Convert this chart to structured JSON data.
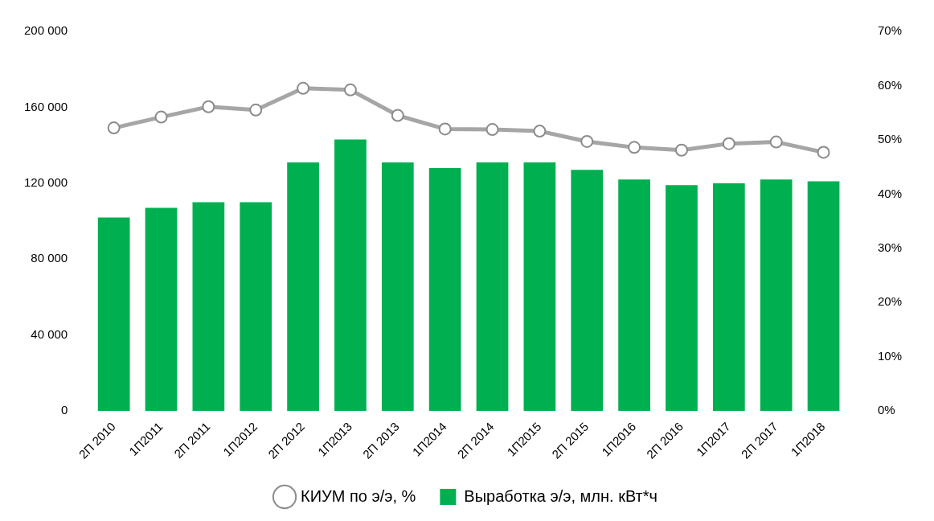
{
  "chart_data": {
    "type": "bar",
    "categories": [
      "2П 2010",
      "1П2011",
      "2П 2011",
      "1П2012",
      "2П 2012",
      "1П2013",
      "2П 2013",
      "1П2014",
      "2П 2014",
      "1П2015",
      "2П 2015",
      "1П2016",
      "2П 2016",
      "1П2017",
      "2П 2017",
      "1П2018"
    ],
    "series": [
      {
        "name": "Выработка э/э, млн. кВт*ч",
        "color": "#00b050",
        "values": [
          102000,
          107000,
          110000,
          110000,
          131000,
          143000,
          131000,
          128000,
          131000,
          131000,
          127000,
          122000,
          119000,
          120000,
          122000,
          121000
        ]
      },
      {
        "name": "КИУМ по э/э, %",
        "type": "line",
        "axis": "y2",
        "color": "#a6a6a6",
        "marker": "circle",
        "values": [
          52.2,
          54.2,
          56.1,
          55.5,
          59.5,
          59.2,
          54.5,
          52.0,
          51.9,
          51.6,
          49.7,
          48.6,
          48.1,
          49.3,
          49.6,
          47.7
        ]
      }
    ],
    "ylim": [
      0,
      200000
    ],
    "yticks": [
      {
        "value": 0,
        "label": "0"
      },
      {
        "value": 40000,
        "label": "40 000"
      },
      {
        "value": 80000,
        "label": "80 000"
      },
      {
        "value": 120000,
        "label": "120 000"
      },
      {
        "value": 160000,
        "label": "160 000"
      },
      {
        "value": 200000,
        "label": "200 000"
      }
    ],
    "y2lim": [
      0,
      70
    ],
    "y2ticks": [
      {
        "value": 0,
        "label": "0%"
      },
      {
        "value": 10,
        "label": "10%"
      },
      {
        "value": 20,
        "label": "20%"
      },
      {
        "value": 30,
        "label": "30%"
      },
      {
        "value": 40,
        "label": "40%"
      },
      {
        "value": 50,
        "label": "50%"
      },
      {
        "value": 60,
        "label": "60%"
      },
      {
        "value": 70,
        "label": "70%"
      }
    ],
    "grid": false,
    "legend": "bottom"
  }
}
